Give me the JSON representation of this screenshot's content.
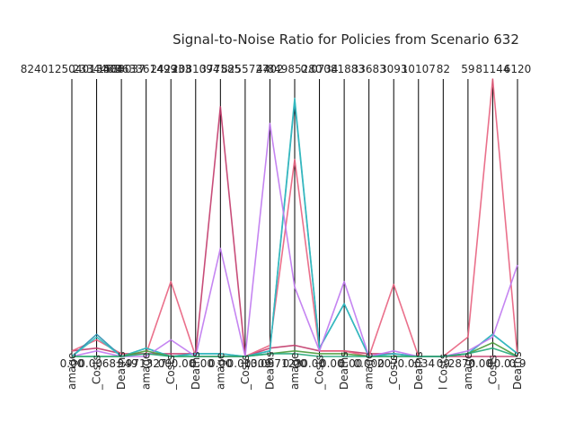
{
  "chart_data": {
    "type": "line",
    "title": "Signal-to-Noise Ratio for Policies from Scenario 632",
    "axes": [
      {
        "label": "amage",
        "top": "824012504013404",
        "bottom": "0.00"
      },
      {
        "label": "_Costs",
        "top": "2334463",
        "bottom": "0.00"
      },
      {
        "label": "Deaths",
        "top": "1583037",
        "bottom": "0.00"
      },
      {
        "label": "amage",
        "top": "363361499",
        "bottom": "0.00"
      },
      {
        "label": "_Costs",
        "top": "242333",
        "bottom": "0.00"
      },
      {
        "label": "Deaths",
        "top": "2081094",
        "bottom": "0.00"
      },
      {
        "label": "amage",
        "top": "377585",
        "bottom": "0.00"
      },
      {
        "label": "_Costs",
        "top": "8255727",
        "bottom": "0.00"
      },
      {
        "label": "Deaths",
        "top": "4402",
        "bottom": "0.00"
      },
      {
        "label": "amage",
        "top": "84985280",
        "bottom": "0.00"
      },
      {
        "label": "_Costs",
        "top": "0.0734",
        "bottom": "0.00"
      },
      {
        "label": "Deaths",
        "top": "081883",
        "bottom": "0.00"
      },
      {
        "label": "amage",
        "top": "33683",
        "bottom": "0.00"
      },
      {
        "label": "_Costs",
        "top": "3093",
        "bottom": "0.00"
      },
      {
        "label": "Deaths",
        "top": "10107",
        "bottom": "0.00"
      },
      {
        "label": "l Costs",
        "top": "82",
        "bottom": "0.00"
      },
      {
        "label": "amage",
        "top": "59",
        "bottom": "0.00"
      },
      {
        "label": "_Costs",
        "top": "81144",
        "bottom": "0.00"
      },
      {
        "label": "Deaths",
        "top": "6120",
        "bottom": "0.00"
      }
    ],
    "bottom_overlay": [
      "0.00",
      "0.00",
      "68",
      "949",
      "971327",
      "00",
      "0.00",
      "0.00",
      "0.00",
      "0.00",
      "1309",
      "0.097123",
      "0.00",
      "0.00",
      "0.00",
      "0.00",
      "0.000",
      "207",
      "0.0",
      "034",
      "09",
      "2870",
      "0.00",
      "00.0",
      "0.9"
    ],
    "ylim": [
      0,
      100
    ],
    "series": [
      {
        "color": "#c23a6a",
        "values": [
          2,
          3,
          1,
          1,
          1,
          1,
          90,
          0,
          3,
          4,
          2,
          2,
          1,
          1,
          0,
          0,
          0,
          0,
          0
        ]
      },
      {
        "color": "#e8607e",
        "values": [
          2,
          6,
          1,
          1,
          27,
          0,
          0,
          0,
          4,
          71,
          2,
          2,
          0,
          26,
          0,
          0,
          7,
          100,
          0
        ]
      },
      {
        "color": "#2a8fb0",
        "values": [
          0,
          8,
          0,
          3,
          0,
          1,
          1,
          0,
          2,
          92,
          3,
          19,
          0,
          1,
          0,
          0,
          1,
          8,
          1
        ]
      },
      {
        "color": "#33bcc0",
        "values": [
          0,
          7,
          0,
          3,
          0,
          1,
          1,
          0,
          2,
          93,
          3,
          19,
          0,
          1,
          0,
          0,
          1,
          8,
          1
        ]
      },
      {
        "color": "#bf78f0",
        "values": [
          0,
          2,
          0,
          0,
          6,
          0,
          39,
          0,
          84,
          25,
          2,
          27,
          0,
          2,
          0,
          0,
          2,
          7,
          33
        ]
      },
      {
        "color": "#4a9a3a",
        "values": [
          0,
          0,
          0,
          2,
          0,
          0,
          0,
          0,
          1,
          2,
          1,
          1,
          0,
          0,
          0,
          0,
          1,
          5,
          0
        ]
      },
      {
        "color": "#22a87a",
        "values": [
          0,
          0,
          0,
          1,
          0,
          0,
          0,
          0,
          1,
          1,
          0,
          0,
          0,
          0,
          0,
          0,
          1,
          3,
          0
        ]
      }
    ]
  }
}
